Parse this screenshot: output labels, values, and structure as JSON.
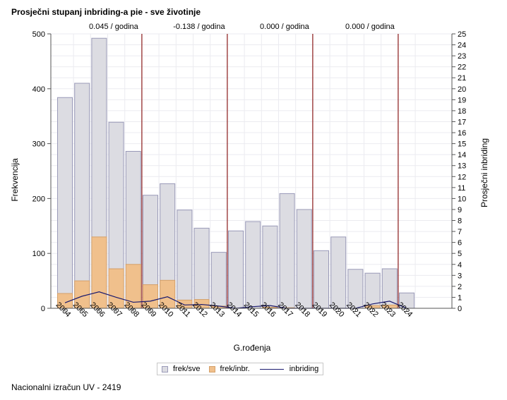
{
  "header": {
    "title": "Prosječni stupanj inbriding-a pie - sve životinje"
  },
  "footer": {
    "text": "Nacionalni izračun UV - 2419"
  },
  "chart_data": {
    "type": "bar",
    "categories": [
      "2004",
      "2005",
      "2006",
      "2007",
      "2008",
      "2009",
      "2010",
      "2011",
      "2012",
      "2013",
      "2014",
      "2015",
      "2016",
      "2017",
      "2018",
      "2019",
      "2020",
      "2021",
      "2022",
      "2023",
      "2024"
    ],
    "series": [
      {
        "name": "frek/sve",
        "kind": "bar",
        "axis": "left",
        "color": "#dcdce2",
        "stroke": "#9a9ab8",
        "values": [
          384,
          410,
          492,
          339,
          286,
          206,
          227,
          179,
          146,
          102,
          141,
          158,
          150,
          209,
          180,
          105,
          130,
          71,
          64,
          72,
          28
        ]
      },
      {
        "name": "frek/inbr.",
        "kind": "bar",
        "axis": "left",
        "color": "#f0c08c",
        "stroke": "#d4a06a",
        "values": [
          27,
          50,
          130,
          72,
          80,
          43,
          51,
          15,
          16,
          4,
          0,
          0,
          2,
          1,
          0,
          0,
          0,
          0,
          5,
          6,
          0
        ]
      },
      {
        "name": "inbriding",
        "kind": "line",
        "axis": "right",
        "color": "#1a1a6e",
        "values": [
          0.5,
          1.1,
          1.5,
          1.0,
          0.55,
          0.65,
          1.05,
          0.3,
          0.35,
          0.2,
          0.0,
          0.15,
          0.25,
          0.0,
          0.0,
          0.0,
          0.0,
          0.0,
          0.4,
          0.65,
          0.0
        ]
      }
    ],
    "xlabel": "G.rođenja",
    "ylabel": "Frekvencija",
    "y2label": "Prosječni inbriding",
    "ylim": [
      0,
      500
    ],
    "yticks": [
      0,
      100,
      200,
      300,
      400,
      500
    ],
    "y2lim": [
      0,
      25
    ],
    "y2ticks": [
      0,
      1,
      2,
      3,
      4,
      5,
      6,
      7,
      8,
      9,
      10,
      11,
      12,
      13,
      14,
      15,
      16,
      17,
      18,
      19,
      20,
      21,
      22,
      23,
      24,
      25
    ],
    "reference_lines": [
      {
        "after": "2008",
        "label": "0.045 / godina"
      },
      {
        "after": "2013",
        "label": "-0.138 / godina"
      },
      {
        "after": "2018",
        "label": "0.000 / godina"
      },
      {
        "after": "2023",
        "label": "0.000 / godina"
      }
    ],
    "grid": true,
    "legend_position": "bottom",
    "refline_color": "#8b1a1a",
    "grid_color": "#ebebf0"
  }
}
